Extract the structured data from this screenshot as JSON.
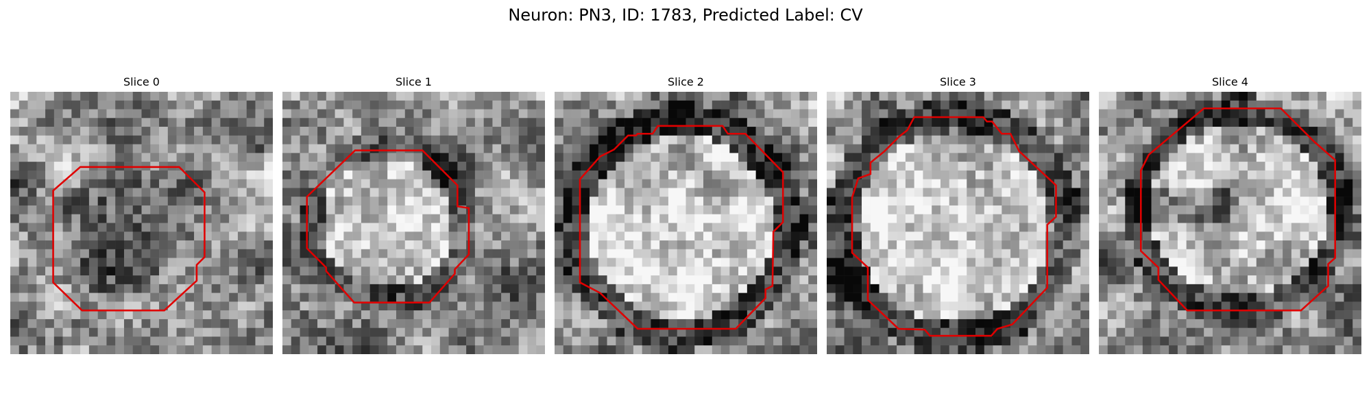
{
  "figure": {
    "title": "Neuron: PN3, ID: 1783, Predicted Label: CV"
  },
  "panels": [
    {
      "label": "Slice 0",
      "pattern": "dark-center"
    },
    {
      "label": "Slice 1",
      "pattern": "bright-center"
    },
    {
      "label": "Slice 2",
      "pattern": "bright-ring"
    },
    {
      "label": "Slice 3",
      "pattern": "bright-ring"
    },
    {
      "label": "Slice 4",
      "pattern": "ring-with-dark-band"
    }
  ],
  "colors": {
    "contour": "#e00000"
  }
}
